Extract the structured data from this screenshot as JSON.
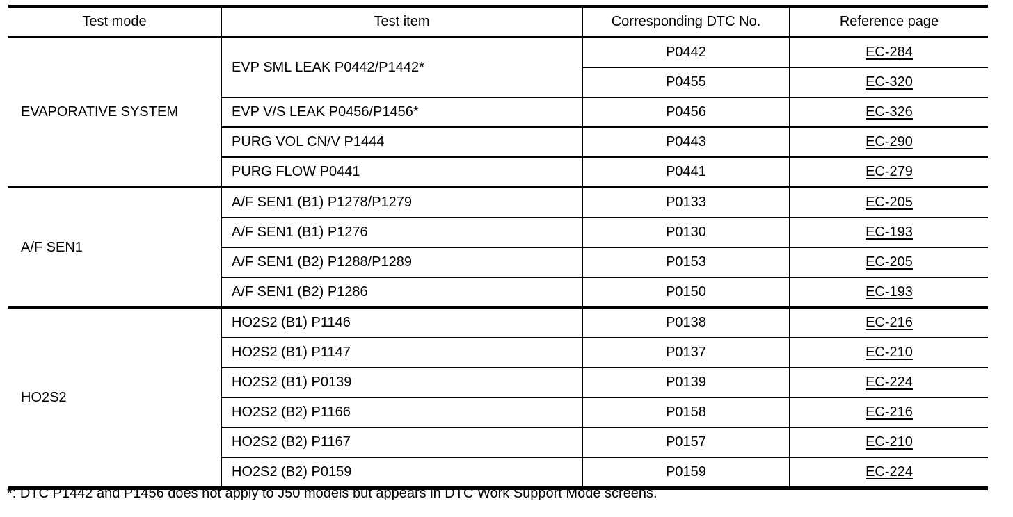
{
  "table": {
    "headers": {
      "test_mode": "Test mode",
      "test_item": "Test item",
      "dtc_no": "Corresponding DTC No.",
      "reference_page": "Reference page"
    },
    "groups": [
      {
        "test_mode": "EVAPORATIVE SYSTEM",
        "items": [
          {
            "test_item": "EVP SML LEAK P0442/P1442*",
            "rows": [
              {
                "dtc": "P0442",
                "ref": "EC-284"
              },
              {
                "dtc": "P0455",
                "ref": "EC-320"
              }
            ]
          },
          {
            "test_item": "EVP V/S LEAK P0456/P1456*",
            "rows": [
              {
                "dtc": "P0456",
                "ref": "EC-326"
              }
            ]
          },
          {
            "test_item": "PURG VOL CN/V P1444",
            "rows": [
              {
                "dtc": "P0443",
                "ref": "EC-290"
              }
            ]
          },
          {
            "test_item": "PURG FLOW P0441",
            "rows": [
              {
                "dtc": "P0441",
                "ref": "EC-279"
              }
            ]
          }
        ]
      },
      {
        "test_mode": "A/F SEN1",
        "items": [
          {
            "test_item": "A/F SEN1 (B1) P1278/P1279",
            "rows": [
              {
                "dtc": "P0133",
                "ref": "EC-205"
              }
            ]
          },
          {
            "test_item": "A/F SEN1 (B1) P1276",
            "rows": [
              {
                "dtc": "P0130",
                "ref": "EC-193"
              }
            ]
          },
          {
            "test_item": "A/F SEN1 (B2) P1288/P1289",
            "rows": [
              {
                "dtc": "P0153",
                "ref": "EC-205"
              }
            ]
          },
          {
            "test_item": "A/F SEN1 (B2) P1286",
            "rows": [
              {
                "dtc": "P0150",
                "ref": "EC-193"
              }
            ]
          }
        ]
      },
      {
        "test_mode": "HO2S2",
        "items": [
          {
            "test_item": "HO2S2 (B1) P1146",
            "rows": [
              {
                "dtc": "P0138",
                "ref": "EC-216"
              }
            ]
          },
          {
            "test_item": "HO2S2 (B1) P1147",
            "rows": [
              {
                "dtc": "P0137",
                "ref": "EC-210"
              }
            ]
          },
          {
            "test_item": "HO2S2 (B1) P0139",
            "rows": [
              {
                "dtc": "P0139",
                "ref": "EC-224"
              }
            ]
          },
          {
            "test_item": "HO2S2 (B2) P1166",
            "rows": [
              {
                "dtc": "P0158",
                "ref": "EC-216"
              }
            ]
          },
          {
            "test_item": "HO2S2 (B2) P1167",
            "rows": [
              {
                "dtc": "P0157",
                "ref": "EC-210"
              }
            ]
          },
          {
            "test_item": "HO2S2 (B2) P0159",
            "rows": [
              {
                "dtc": "P0159",
                "ref": "EC-224"
              }
            ]
          }
        ]
      }
    ],
    "footnote": "*: DTC P1442 and P1456 does not apply to J50 models but appears in DTC Work Support Mode screens."
  }
}
